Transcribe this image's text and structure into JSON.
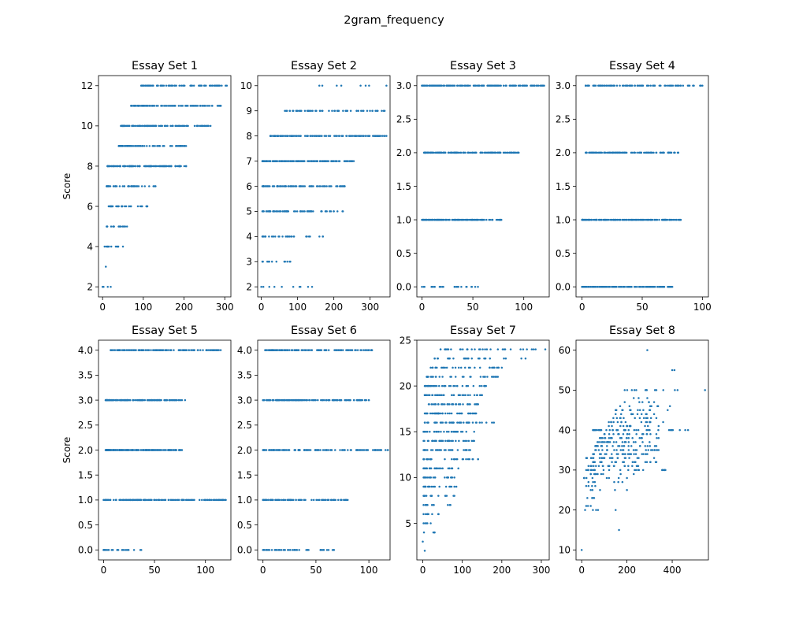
{
  "figure": {
    "suptitle": "2gram_frequency",
    "marker_color": "#1f77b4",
    "background": "#ffffff"
  },
  "chart_data": [
    {
      "type": "scatter",
      "title": "Essay Set 1",
      "xlabel": "",
      "ylabel": "Score",
      "xlim": [
        -10,
        315
      ],
      "ylim": [
        1.5,
        12.5
      ],
      "xticks": [
        0,
        100,
        200,
        300
      ],
      "yticks": [
        2,
        4,
        6,
        8,
        10,
        12
      ],
      "ytick_labels": [
        "2",
        "4",
        "6",
        "8",
        "10",
        "12"
      ],
      "rows": [
        {
          "y": 2,
          "xmin": 0,
          "xmax": 20,
          "n": 4
        },
        {
          "y": 3,
          "xmin": 8,
          "xmax": 8,
          "n": 1
        },
        {
          "y": 4,
          "xmin": 5,
          "xmax": 50,
          "n": 12
        },
        {
          "y": 5,
          "xmin": 10,
          "xmax": 60,
          "n": 16
        },
        {
          "y": 6,
          "xmin": 15,
          "xmax": 110,
          "n": 30
        },
        {
          "y": 7,
          "xmin": 10,
          "xmax": 130,
          "n": 45
        },
        {
          "y": 8,
          "xmin": 12,
          "xmax": 205,
          "n": 120
        },
        {
          "y": 9,
          "xmin": 40,
          "xmax": 205,
          "n": 90
        },
        {
          "y": 10,
          "xmin": 45,
          "xmax": 265,
          "n": 110
        },
        {
          "y": 11,
          "xmin": 70,
          "xmax": 290,
          "n": 100
        },
        {
          "y": 12,
          "xmin": 95,
          "xmax": 305,
          "n": 80
        }
      ]
    },
    {
      "type": "scatter",
      "title": "Essay Set 2",
      "xlabel": "",
      "ylabel": "",
      "xlim": [
        -10,
        355
      ],
      "ylim": [
        1.6,
        10.4
      ],
      "xticks": [
        0,
        100,
        200,
        300
      ],
      "yticks": [
        2,
        3,
        4,
        5,
        6,
        7,
        8,
        9,
        10
      ],
      "ytick_labels": [
        "2",
        "3",
        "4",
        "5",
        "6",
        "7",
        "8",
        "9",
        "10"
      ],
      "rows": [
        {
          "y": 2,
          "xmin": 0,
          "xmax": 140,
          "n": 10
        },
        {
          "y": 3,
          "xmin": 3,
          "xmax": 80,
          "n": 12
        },
        {
          "y": 4,
          "xmin": 3,
          "xmax": 170,
          "n": 30
        },
        {
          "y": 5,
          "xmin": 3,
          "xmax": 225,
          "n": 70
        },
        {
          "y": 6,
          "xmin": 3,
          "xmax": 230,
          "n": 90
        },
        {
          "y": 7,
          "xmin": 3,
          "xmax": 255,
          "n": 140
        },
        {
          "y": 8,
          "xmin": 25,
          "xmax": 345,
          "n": 130
        },
        {
          "y": 9,
          "xmin": 65,
          "xmax": 340,
          "n": 60
        },
        {
          "y": 10,
          "xmin": 160,
          "xmax": 345,
          "n": 8
        }
      ]
    },
    {
      "type": "scatter",
      "title": "Essay Set 3",
      "xlabel": "",
      "ylabel": "",
      "xlim": [
        -5,
        125
      ],
      "ylim": [
        -0.15,
        3.15
      ],
      "xticks": [
        0,
        50,
        100
      ],
      "yticks": [
        0,
        0.5,
        1,
        1.5,
        2,
        2.5,
        3
      ],
      "ytick_labels": [
        "0.0",
        "0.5",
        "1.0",
        "1.5",
        "2.0",
        "2.5",
        "3.0"
      ],
      "rows": [
        {
          "y": 0,
          "xmin": 0,
          "xmax": 55,
          "n": 25
        },
        {
          "y": 1,
          "xmin": 0,
          "xmax": 78,
          "n": 150
        },
        {
          "y": 2,
          "xmin": 2,
          "xmax": 95,
          "n": 160
        },
        {
          "y": 3,
          "xmin": 0,
          "xmax": 120,
          "n": 180
        }
      ]
    },
    {
      "type": "scatter",
      "title": "Essay Set 4",
      "xlabel": "",
      "ylabel": "",
      "xlim": [
        -5,
        105
      ],
      "ylim": [
        -0.15,
        3.15
      ],
      "xticks": [
        0,
        50,
        100
      ],
      "yticks": [
        0,
        0.5,
        1,
        1.5,
        2,
        2.5,
        3
      ],
      "ytick_labels": [
        "0.0",
        "0.5",
        "1.0",
        "1.5",
        "2.0",
        "2.5",
        "3.0"
      ],
      "rows": [
        {
          "y": 0,
          "xmin": 0,
          "xmax": 75,
          "n": 140
        },
        {
          "y": 1,
          "xmin": 0,
          "xmax": 82,
          "n": 170
        },
        {
          "y": 2,
          "xmin": 3,
          "xmax": 80,
          "n": 130
        },
        {
          "y": 3,
          "xmin": 3,
          "xmax": 100,
          "n": 100
        }
      ]
    },
    {
      "type": "scatter",
      "title": "Essay Set 5",
      "xlabel": "",
      "ylabel": "Score",
      "xlim": [
        -5,
        125
      ],
      "ylim": [
        -0.2,
        4.2
      ],
      "xticks": [
        0,
        50,
        100
      ],
      "yticks": [
        0,
        0.5,
        1,
        1.5,
        2,
        2.5,
        3,
        3.5,
        4
      ],
      "ytick_labels": [
        "0.0",
        "0.5",
        "1.0",
        "1.5",
        "2.0",
        "2.5",
        "3.0",
        "3.5",
        "4.0"
      ],
      "rows": [
        {
          "y": 0,
          "xmin": 0,
          "xmax": 37,
          "n": 25
        },
        {
          "y": 1,
          "xmin": 0,
          "xmax": 120,
          "n": 150
        },
        {
          "y": 2,
          "xmin": 2,
          "xmax": 77,
          "n": 180
        },
        {
          "y": 3,
          "xmin": 2,
          "xmax": 80,
          "n": 150
        },
        {
          "y": 4,
          "xmin": 7,
          "xmax": 115,
          "n": 130
        }
      ]
    },
    {
      "type": "scatter",
      "title": "Essay Set 6",
      "xlabel": "",
      "ylabel": "",
      "xlim": [
        -5,
        120
      ],
      "ylim": [
        -0.2,
        4.2
      ],
      "xticks": [
        0,
        50,
        100
      ],
      "yticks": [
        0,
        0.5,
        1,
        1.5,
        2,
        2.5,
        3,
        3.5,
        4
      ],
      "ytick_labels": [
        "0.0",
        "0.5",
        "1.0",
        "1.5",
        "2.0",
        "2.5",
        "3.0",
        "3.5",
        "4.0"
      ],
      "rows": [
        {
          "y": 0,
          "xmin": 0,
          "xmax": 67,
          "n": 50
        },
        {
          "y": 1,
          "xmin": 0,
          "xmax": 80,
          "n": 90
        },
        {
          "y": 2,
          "xmin": 0,
          "xmax": 118,
          "n": 130
        },
        {
          "y": 3,
          "xmin": 0,
          "xmax": 100,
          "n": 140
        },
        {
          "y": 4,
          "xmin": 2,
          "xmax": 103,
          "n": 130
        }
      ]
    },
    {
      "type": "scatter",
      "title": "Essay Set 7",
      "xlabel": "",
      "ylabel": "",
      "xlim": [
        -15,
        320
      ],
      "ylim": [
        1,
        25
      ],
      "xticks": [
        0,
        100,
        200,
        300
      ],
      "yticks": [
        5,
        10,
        15,
        20,
        25
      ],
      "ytick_labels": [
        "5",
        "10",
        "15",
        "20",
        "25"
      ],
      "rows": [
        {
          "y": 2,
          "xmin": 5,
          "xmax": 5,
          "n": 1
        },
        {
          "y": 3,
          "xmin": 0,
          "xmax": 0,
          "n": 1
        },
        {
          "y": 4,
          "xmin": 3,
          "xmax": 30,
          "n": 4
        },
        {
          "y": 5,
          "xmin": 2,
          "xmax": 20,
          "n": 5
        },
        {
          "y": 6,
          "xmin": 2,
          "xmax": 40,
          "n": 8
        },
        {
          "y": 7,
          "xmin": 2,
          "xmax": 70,
          "n": 12
        },
        {
          "y": 8,
          "xmin": 2,
          "xmax": 80,
          "n": 15
        },
        {
          "y": 9,
          "xmin": 2,
          "xmax": 85,
          "n": 18
        },
        {
          "y": 10,
          "xmin": 2,
          "xmax": 80,
          "n": 22
        },
        {
          "y": 11,
          "xmin": 2,
          "xmax": 90,
          "n": 25
        },
        {
          "y": 12,
          "xmin": 2,
          "xmax": 140,
          "n": 30
        },
        {
          "y": 13,
          "xmin": 2,
          "xmax": 120,
          "n": 30
        },
        {
          "y": 14,
          "xmin": 2,
          "xmax": 130,
          "n": 35
        },
        {
          "y": 15,
          "xmin": 2,
          "xmax": 130,
          "n": 35
        },
        {
          "y": 16,
          "xmin": 5,
          "xmax": 180,
          "n": 40
        },
        {
          "y": 17,
          "xmin": 5,
          "xmax": 135,
          "n": 40
        },
        {
          "y": 18,
          "xmin": 15,
          "xmax": 140,
          "n": 40
        },
        {
          "y": 19,
          "xmin": 5,
          "xmax": 150,
          "n": 40
        },
        {
          "y": 20,
          "xmin": 5,
          "xmax": 160,
          "n": 40
        },
        {
          "y": 21,
          "xmin": 10,
          "xmax": 190,
          "n": 35
        },
        {
          "y": 22,
          "xmin": 20,
          "xmax": 200,
          "n": 30
        },
        {
          "y": 23,
          "xmin": 30,
          "xmax": 260,
          "n": 25
        },
        {
          "y": 24,
          "xmin": 45,
          "xmax": 310,
          "n": 35
        }
      ]
    },
    {
      "type": "scatter",
      "title": "Essay Set 8",
      "xlabel": "",
      "ylabel": "",
      "xlim": [
        -25,
        560
      ],
      "ylim": [
        7.5,
        62.5
      ],
      "xticks": [
        0,
        200,
        400
      ],
      "yticks": [
        10,
        20,
        30,
        40,
        50,
        60
      ],
      "ytick_labels": [
        "10",
        "20",
        "30",
        "40",
        "50",
        "60"
      ],
      "rows": [
        {
          "y": 10,
          "xmin": 0,
          "xmax": 0,
          "n": 1
        },
        {
          "y": 15,
          "xmin": 165,
          "xmax": 165,
          "n": 1
        },
        {
          "y": 20,
          "xmin": 15,
          "xmax": 150,
          "n": 5
        },
        {
          "y": 21,
          "xmin": 20,
          "xmax": 40,
          "n": 3
        },
        {
          "y": 23,
          "xmin": 25,
          "xmax": 55,
          "n": 4
        },
        {
          "y": 25,
          "xmin": 40,
          "xmax": 200,
          "n": 5
        },
        {
          "y": 26,
          "xmin": 20,
          "xmax": 60,
          "n": 4
        },
        {
          "y": 27,
          "xmin": 30,
          "xmax": 180,
          "n": 6
        },
        {
          "y": 28,
          "xmin": 10,
          "xmax": 200,
          "n": 8
        },
        {
          "y": 29,
          "xmin": 40,
          "xmax": 230,
          "n": 10
        },
        {
          "y": 30,
          "xmin": 20,
          "xmax": 370,
          "n": 25
        },
        {
          "y": 31,
          "xmin": 30,
          "xmax": 250,
          "n": 20
        },
        {
          "y": 32,
          "xmin": 50,
          "xmax": 330,
          "n": 22
        },
        {
          "y": 33,
          "xmin": 20,
          "xmax": 320,
          "n": 25
        },
        {
          "y": 34,
          "xmin": 50,
          "xmax": 290,
          "n": 25
        },
        {
          "y": 35,
          "xmin": 60,
          "xmax": 340,
          "n": 25
        },
        {
          "y": 36,
          "xmin": 60,
          "xmax": 330,
          "n": 25
        },
        {
          "y": 37,
          "xmin": 70,
          "xmax": 300,
          "n": 22
        },
        {
          "y": 38,
          "xmin": 80,
          "xmax": 340,
          "n": 22
        },
        {
          "y": 39,
          "xmin": 100,
          "xmax": 330,
          "n": 18
        },
        {
          "y": 40,
          "xmin": 50,
          "xmax": 470,
          "n": 40
        },
        {
          "y": 41,
          "xmin": 120,
          "xmax": 340,
          "n": 15
        },
        {
          "y": 42,
          "xmin": 120,
          "xmax": 360,
          "n": 15
        },
        {
          "y": 43,
          "xmin": 140,
          "xmax": 330,
          "n": 12
        },
        {
          "y": 44,
          "xmin": 150,
          "xmax": 320,
          "n": 10
        },
        {
          "y": 45,
          "xmin": 150,
          "xmax": 380,
          "n": 14
        },
        {
          "y": 46,
          "xmin": 170,
          "xmax": 390,
          "n": 8
        },
        {
          "y": 47,
          "xmin": 190,
          "xmax": 320,
          "n": 6
        },
        {
          "y": 48,
          "xmin": 230,
          "xmax": 290,
          "n": 3
        },
        {
          "y": 50,
          "xmin": 190,
          "xmax": 545,
          "n": 14
        },
        {
          "y": 55,
          "xmin": 400,
          "xmax": 410,
          "n": 2
        },
        {
          "y": 60,
          "xmin": 290,
          "xmax": 290,
          "n": 1
        }
      ]
    }
  ]
}
